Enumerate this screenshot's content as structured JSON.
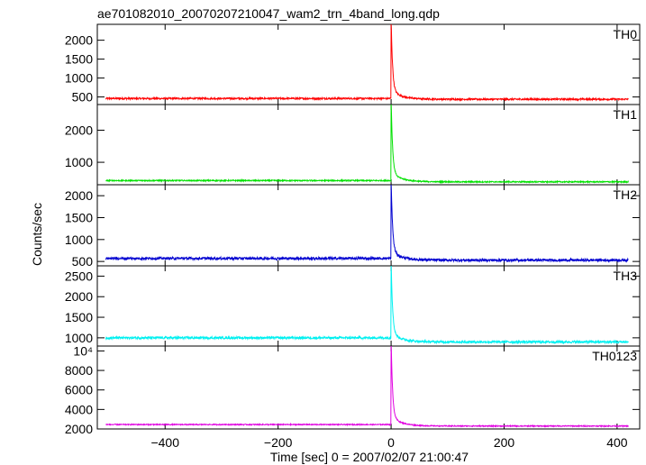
{
  "chart_data": {
    "type": "line",
    "title": "ae701082010_20070207210047_wam2_trn_4band_long.qdp",
    "xlabel": "Time [sec] 0 = 2007/02/07 21:00:47",
    "ylabel": "Counts/sec",
    "xlim": [
      -520,
      440
    ],
    "x_ticks": [
      -400,
      -200,
      0,
      200,
      400
    ],
    "x_tick_labels": [
      "−400",
      "−200",
      "0",
      "200",
      "400"
    ],
    "peak_time": 0,
    "panels": [
      {
        "name": "TH0",
        "color": "#ff0000",
        "ylim": [
          300,
          2420
        ],
        "y_ticks": [
          500,
          1000,
          1500,
          2000
        ],
        "y_tick_labels": [
          "500",
          "1000",
          "1500",
          "2000"
        ],
        "baseline_pre": 460,
        "baseline_post": 440,
        "peak": 2420,
        "noise": 22
      },
      {
        "name": "TH1",
        "color": "#00e000",
        "ylim": [
          300,
          2800
        ],
        "y_ticks": [
          1000,
          2000
        ],
        "y_tick_labels": [
          "1000",
          "2000"
        ],
        "baseline_pre": 430,
        "baseline_post": 390,
        "peak": 2800,
        "noise": 18
      },
      {
        "name": "TH2",
        "color": "#0000d0",
        "ylim": [
          400,
          2250
        ],
        "y_ticks": [
          500,
          1000,
          1500,
          2000
        ],
        "y_tick_labels": [
          "500",
          "1000",
          "1500",
          "2000"
        ],
        "baseline_pre": 570,
        "baseline_post": 530,
        "peak": 2250,
        "noise": 28
      },
      {
        "name": "TH3",
        "color": "#00f0f0",
        "ylim": [
          800,
          2750
        ],
        "y_ticks": [
          1000,
          1500,
          2000,
          2500
        ],
        "y_tick_labels": [
          "1000",
          "1500",
          "2000",
          "2500"
        ],
        "baseline_pre": 1000,
        "baseline_post": 900,
        "peak": 2750,
        "noise": 28
      },
      {
        "name": "TH0123",
        "color": "#e000e0",
        "ylim": [
          2000,
          10500
        ],
        "y_ticks": [
          2000,
          4000,
          6000,
          8000,
          10000
        ],
        "y_tick_labels": [
          "2000",
          "4000",
          "6000",
          "8000",
          "10⁴"
        ],
        "baseline_pre": 2450,
        "baseline_post": 2300,
        "peak": 10500,
        "noise": 50
      }
    ]
  }
}
